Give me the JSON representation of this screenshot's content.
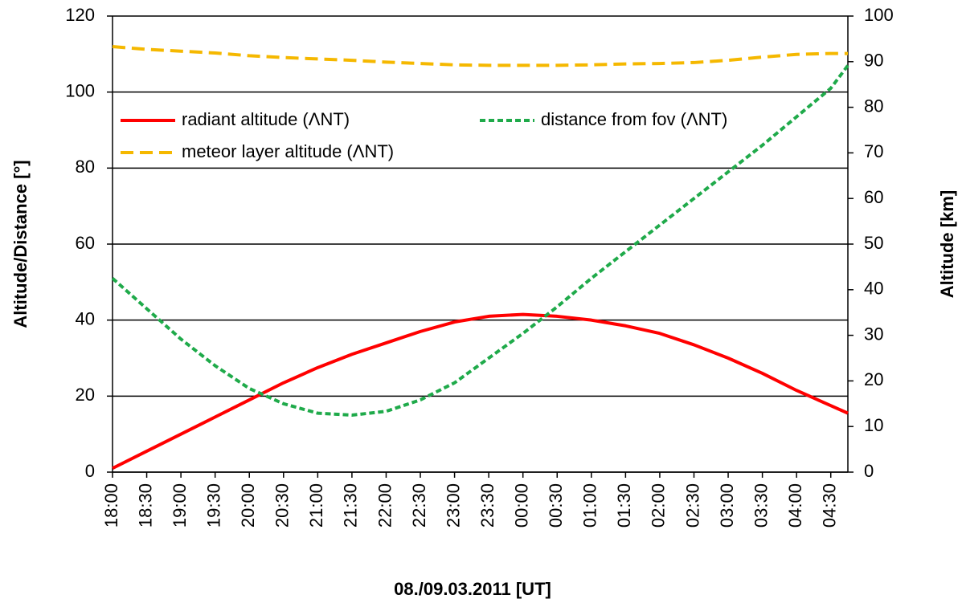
{
  "chart_data": {
    "type": "line",
    "x_label": "08./09.03.2011 [UT]",
    "y_label": "Altitude/Distance [°]",
    "y2_label": "Altitude [km]",
    "x": [
      0,
      0.5,
      1,
      1.5,
      2,
      2.5,
      3,
      3.5,
      4,
      4.5,
      5,
      5.5,
      6,
      6.5,
      7,
      7.5,
      8,
      8.5,
      9,
      9.5,
      10,
      10.5,
      10.75
    ],
    "xlim": [
      0,
      10.75
    ],
    "xticks": [
      {
        "value": 0,
        "label": "18:00"
      },
      {
        "value": 0.5,
        "label": "18:30"
      },
      {
        "value": 1,
        "label": "19:00"
      },
      {
        "value": 1.5,
        "label": "19:30"
      },
      {
        "value": 2,
        "label": "20:00"
      },
      {
        "value": 2.5,
        "label": "20:30"
      },
      {
        "value": 3,
        "label": "21:00"
      },
      {
        "value": 3.5,
        "label": "21:30"
      },
      {
        "value": 4,
        "label": "22:00"
      },
      {
        "value": 4.5,
        "label": "22:30"
      },
      {
        "value": 5,
        "label": "23:00"
      },
      {
        "value": 5.5,
        "label": "23:30"
      },
      {
        "value": 6,
        "label": "00:00"
      },
      {
        "value": 6.5,
        "label": "00:30"
      },
      {
        "value": 7,
        "label": "01:00"
      },
      {
        "value": 7.5,
        "label": "01:30"
      },
      {
        "value": 8,
        "label": "02:00"
      },
      {
        "value": 8.5,
        "label": "02:30"
      },
      {
        "value": 9,
        "label": "03:00"
      },
      {
        "value": 9.5,
        "label": "03:30"
      },
      {
        "value": 10,
        "label": "04:00"
      },
      {
        "value": 10.5,
        "label": "04:30"
      }
    ],
    "ylim": [
      0,
      120
    ],
    "yticks": [
      0,
      20,
      40,
      60,
      80,
      100,
      120
    ],
    "y2lim": [
      0,
      100
    ],
    "y2ticks": [
      0,
      10,
      20,
      30,
      40,
      50,
      60,
      70,
      80,
      90,
      100
    ],
    "grid": true,
    "series": [
      {
        "name": "radiant altitude (ΛNT)",
        "color": "#ff0000",
        "style": "solid",
        "values": [
          1,
          5.5,
          10,
          14.5,
          19,
          23.5,
          27.5,
          31,
          34,
          37,
          39.5,
          41,
          41.5,
          41,
          40,
          38.5,
          36.5,
          33.5,
          30,
          26,
          21.5,
          17.5,
          15.5
        ]
      },
      {
        "name": "distance from fov (ΛNT)",
        "color": "#1faa4a",
        "style": "dotted",
        "values": [
          51,
          43,
          35,
          28,
          22,
          18,
          15.5,
          15,
          16,
          19,
          23.5,
          30,
          36.5,
          43.5,
          51,
          58,
          65,
          72,
          79,
          86,
          93.5,
          101,
          107
        ]
      },
      {
        "name": "meteor layer altitude (ΛNT)",
        "color": "#f5b800",
        "style": "dashed",
        "axis": "y2",
        "values": [
          93.3,
          92.7,
          92.3,
          91.9,
          91.3,
          90.9,
          90.6,
          90.3,
          89.9,
          89.6,
          89.3,
          89.2,
          89.2,
          89.2,
          89.3,
          89.5,
          89.6,
          89.8,
          90.3,
          91,
          91.6,
          91.8,
          91.8
        ]
      }
    ]
  }
}
